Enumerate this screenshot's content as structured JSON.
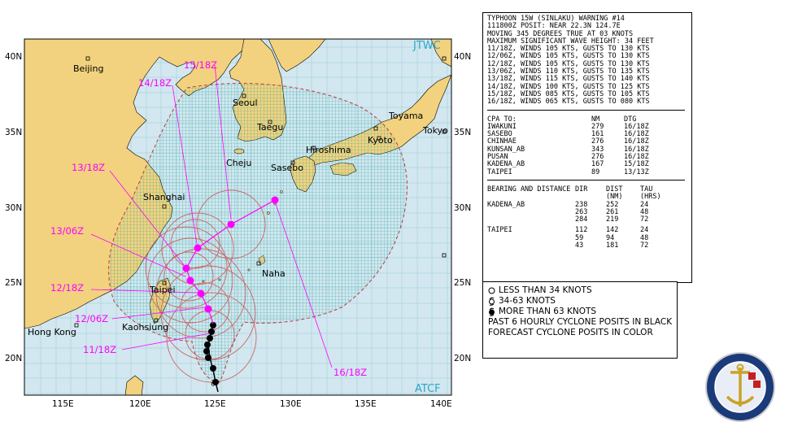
{
  "map": {
    "agency_top": "JTWC",
    "agency_bottom": "ATCF",
    "lat_labels": [
      "40N",
      "35N",
      "30N",
      "25N",
      "20N"
    ],
    "lon_labels": [
      "115E",
      "120E",
      "125E",
      "130E",
      "135E",
      "140E"
    ],
    "cities": [
      {
        "name": "Beijing"
      },
      {
        "name": "Seoul"
      },
      {
        "name": "Taegu"
      },
      {
        "name": "Cheju"
      },
      {
        "name": "Sasebo"
      },
      {
        "name": "Hiroshima"
      },
      {
        "name": "Kyoto"
      },
      {
        "name": "Toyama"
      },
      {
        "name": "Tokyo"
      },
      {
        "name": "Shanghai"
      },
      {
        "name": "Naha"
      },
      {
        "name": "Taipei"
      },
      {
        "name": "Kaohsiung"
      },
      {
        "name": "Hong Kong"
      }
    ],
    "forecast_labels": [
      "15/18Z",
      "14/18Z",
      "13/18Z",
      "13/06Z",
      "12/18Z",
      "12/06Z",
      "11/18Z",
      "16/18Z"
    ],
    "colors": {
      "land": "#f2d27e",
      "sea": "#cfe6ef",
      "grid": "#bcdde6",
      "danger": "#c0393b",
      "forecast": "#ff00ff",
      "track": "#000000",
      "wind_radii": "#cc6666"
    }
  },
  "warning": {
    "lines": [
      "TYPHOON 15W (SINLAKU) WARNING #14",
      "111800Z POSIT: NEAR 22.3N 124.7E",
      "MOVING 345 DEGREES TRUE AT 03 KNOTS",
      "MAXIMUM SIGNIFICANT WAVE HEIGHT: 34 FEET",
      "11/18Z, WINDS 105 KTS, GUSTS TO 130 KTS",
      "12/06Z, WINDS 105 KTS, GUSTS TO 130 KTS",
      "12/18Z, WINDS 105 KTS, GUSTS TO 130 KTS",
      "13/06Z, WINDS 110 KTS, GUSTS TO 135 KTS",
      "13/18Z, WINDS 115 KTS, GUSTS TO 140 KTS",
      "14/18Z, WINDS 100 KTS, GUSTS TO 125 KTS",
      "15/18Z, WINDS 085 KTS, GUSTS TO 105 KTS",
      "16/18Z, WINDS 065 KTS, GUSTS TO 080 KTS"
    ],
    "cpa_header": [
      "CPA TO:",
      "NM",
      "DTG"
    ],
    "cpa": [
      [
        "IWAKUNI",
        "279",
        "16/18Z"
      ],
      [
        "SASEBO",
        "161",
        "16/18Z"
      ],
      [
        "CHINHAE",
        "276",
        "16/18Z"
      ],
      [
        "KUNSAN_AB",
        "343",
        "16/18Z"
      ],
      [
        "PUSAN",
        "276",
        "16/18Z"
      ],
      [
        "KADENA_AB",
        "167",
        "15/18Z"
      ],
      [
        "TAIPEI",
        "89",
        "13/13Z"
      ]
    ],
    "bd_header": [
      "BEARING AND DISTANCE",
      "DIR",
      "DIST",
      "TAU"
    ],
    "bd_header2": [
      "",
      "",
      "(NM)",
      "(HRS)"
    ],
    "bd": [
      [
        "KADENA_AB",
        "238",
        "252",
        "24"
      ],
      [
        "",
        "263",
        "261",
        "48"
      ],
      [
        "",
        "284",
        "219",
        "72"
      ],
      [
        "TAIPEI",
        "112",
        "142",
        "24"
      ],
      [
        "",
        "59",
        "94",
        "48"
      ],
      [
        "",
        "43",
        "181",
        "72"
      ]
    ]
  },
  "legend": {
    "items": [
      "LESS THAN 34 KNOTS",
      "34-63 KNOTS",
      "MORE THAN 63 KNOTS",
      "PAST 6 HOURLY CYCLONE POSITS IN BLACK",
      "FORECAST CYCLONE POSITS IN COLOR"
    ]
  }
}
